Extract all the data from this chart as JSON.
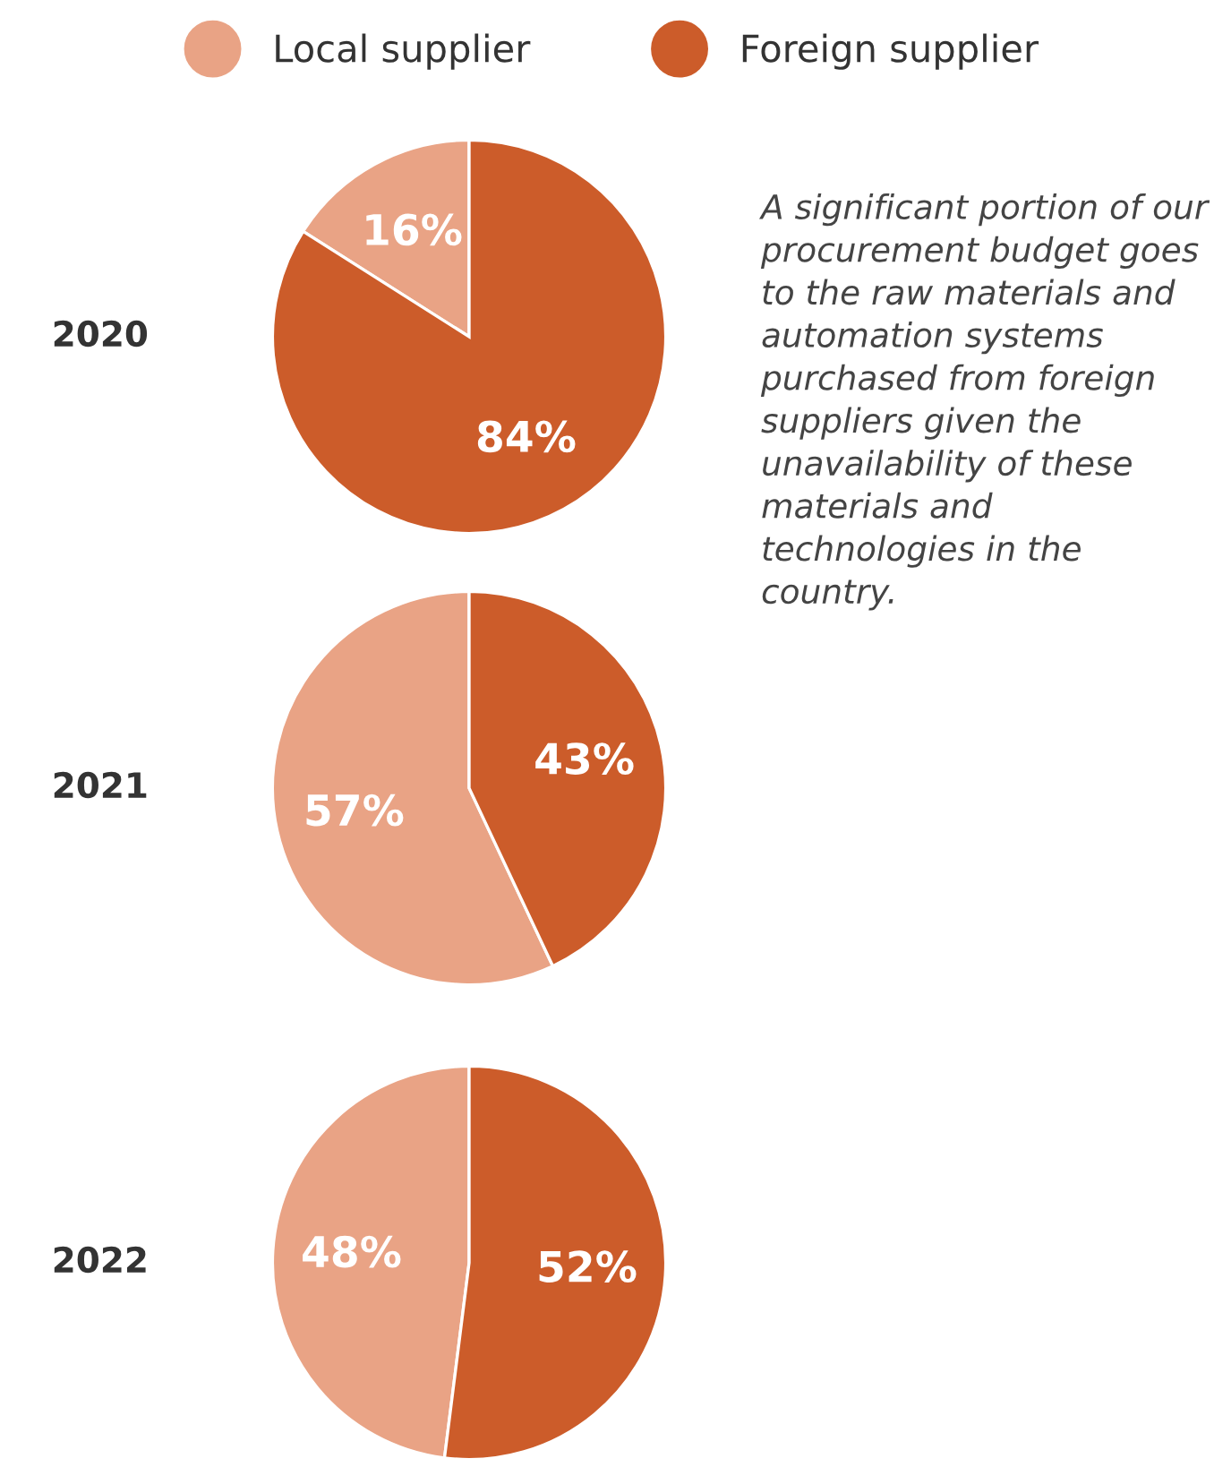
{
  "chart_data": [
    {
      "type": "pie",
      "title": "2020",
      "categories": [
        "Local supplier",
        "Foreign supplier"
      ],
      "values": [
        16,
        84
      ],
      "colors": [
        "#e9a385",
        "#cc5c2a"
      ],
      "value_labels": [
        "16%",
        "84%"
      ],
      "legend": "top",
      "annotations": [
        "A significant portion of our procurement budget goes to the raw materials and automation systems purchased from foreign suppliers given the unavailability of these materials and technologies in the country."
      ]
    },
    {
      "type": "pie",
      "title": "2021",
      "categories": [
        null,
        null
      ],
      "values": [
        57,
        43
      ],
      "colors": [
        "#e9a385",
        "#cc5c2a"
      ],
      "value_labels": [
        "57%",
        "43%"
      ]
    },
    {
      "type": "pie",
      "title": "2022",
      "categories": [
        null,
        null
      ],
      "values": [
        48,
        52
      ],
      "colors": [
        "#e9a385",
        "#cc5c2a"
      ],
      "value_labels": [
        "48%",
        "52%"
      ]
    }
  ]
}
